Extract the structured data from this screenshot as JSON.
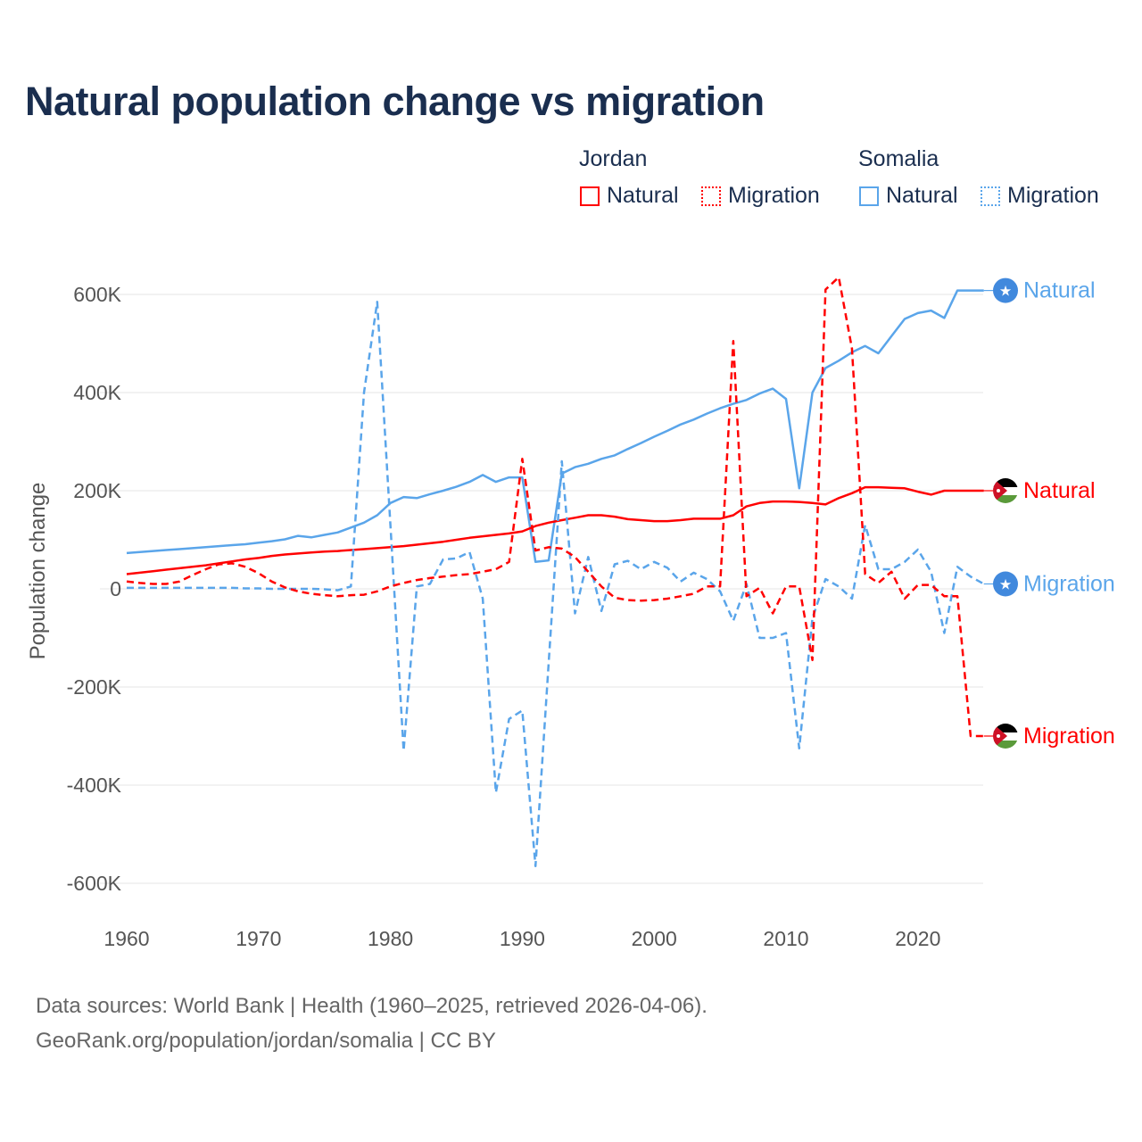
{
  "title": "Natural population change vs migration",
  "legend": {
    "groups": [
      {
        "country": "Jordan",
        "items": [
          {
            "label": "Natural",
            "style": "solid",
            "color": "#ff0000"
          },
          {
            "label": "Migration",
            "style": "dotted",
            "color": "#ff0000"
          }
        ]
      },
      {
        "country": "Somalia",
        "items": [
          {
            "label": "Natural",
            "style": "solid",
            "color": "#5aa5ea"
          },
          {
            "label": "Migration",
            "style": "dotted",
            "color": "#5aa5ea"
          }
        ]
      }
    ]
  },
  "source": {
    "line1": "Data sources: World Bank | Health (1960–2025, retrieved 2026-04-06).",
    "line2": "GeoRank.org/population/jordan/somalia | CC BY"
  },
  "chart_data": {
    "type": "line",
    "title": "Natural population change vs migration",
    "xlabel": "",
    "ylabel": "Population change",
    "xlim": [
      1960,
      2025
    ],
    "ylim": [
      -650000,
      650000
    ],
    "x_ticks": [
      1960,
      1970,
      1980,
      1990,
      2000,
      2010,
      2020
    ],
    "y_ticks": [
      {
        "v": -600000,
        "label": "-600K"
      },
      {
        "v": -400000,
        "label": "-400K"
      },
      {
        "v": -200000,
        "label": "-200K"
      },
      {
        "v": 0,
        "label": "0"
      },
      {
        "v": 200000,
        "label": "200K"
      },
      {
        "v": 400000,
        "label": "400K"
      },
      {
        "v": 600000,
        "label": "600K"
      }
    ],
    "grid": true,
    "start_year": 1960,
    "series": [
      {
        "name": "Somalia Natural",
        "end_label": "Natural",
        "color": "#5aa5ea",
        "dash": "",
        "flag": "somalia",
        "values_k": [
          73,
          75,
          77,
          79,
          81,
          83,
          85,
          87,
          89,
          91,
          94,
          97,
          101,
          108,
          105,
          110,
          115,
          125,
          135,
          150,
          175,
          187,
          185,
          193,
          200,
          208,
          218,
          232,
          218,
          227,
          227,
          55,
          58,
          235,
          248,
          255,
          265,
          272,
          285,
          297,
          310,
          322,
          335,
          345,
          357,
          368,
          377,
          385,
          398,
          408,
          387,
          205,
          400,
          450,
          465,
          482,
          495,
          480,
          515,
          550,
          562,
          567,
          552,
          608,
          608,
          608
        ]
      },
      {
        "name": "Jordan Natural",
        "end_label": "Natural",
        "color": "#ff0000",
        "dash": "",
        "flag": "jordan",
        "values_k": [
          30,
          33,
          36,
          39,
          42,
          45,
          48,
          52,
          56,
          60,
          63,
          67,
          70,
          72,
          74,
          76,
          77,
          79,
          81,
          83,
          85,
          87,
          90,
          93,
          96,
          100,
          104,
          107,
          110,
          113,
          117,
          128,
          135,
          140,
          145,
          150,
          150,
          147,
          142,
          140,
          138,
          138,
          140,
          143,
          143,
          143,
          150,
          168,
          175,
          178,
          178,
          177,
          175,
          172,
          185,
          195,
          207,
          207,
          206,
          205,
          198,
          192,
          200,
          200,
          200,
          200
        ]
      },
      {
        "name": "Somalia Migration",
        "end_label": "Migration",
        "color": "#5aa5ea",
        "dash": "8,5",
        "flag": "somalia",
        "values_k": [
          2,
          2,
          2,
          2,
          2,
          2,
          2,
          2,
          2,
          1,
          1,
          0,
          0,
          0,
          0,
          -1,
          -3,
          5,
          400,
          585,
          130,
          -330,
          5,
          10,
          60,
          62,
          75,
          -20,
          -415,
          -265,
          -248,
          -565,
          -150,
          260,
          -50,
          65,
          -45,
          50,
          57,
          40,
          55,
          43,
          15,
          33,
          20,
          -5,
          -65,
          10,
          -100,
          -100,
          -90,
          -325,
          -60,
          20,
          5,
          -20,
          130,
          40,
          40,
          55,
          80,
          35,
          -90,
          45,
          25,
          10
        ]
      },
      {
        "name": "Jordan Migration",
        "end_label": "Migration",
        "color": "#ff0000",
        "dash": "8,5",
        "flag": "jordan",
        "values_k": [
          15,
          12,
          10,
          10,
          15,
          28,
          40,
          50,
          52,
          45,
          32,
          15,
          3,
          -5,
          -10,
          -13,
          -15,
          -13,
          -12,
          -5,
          5,
          12,
          18,
          22,
          25,
          28,
          30,
          35,
          40,
          55,
          265,
          78,
          85,
          82,
          65,
          35,
          5,
          -18,
          -23,
          -24,
          -23,
          -20,
          -15,
          -10,
          5,
          5,
          505,
          -15,
          2,
          -50,
          5,
          5,
          -145,
          610,
          635,
          490,
          30,
          12,
          35,
          -20,
          8,
          8,
          -15,
          -15,
          -300,
          -300
        ]
      }
    ]
  }
}
